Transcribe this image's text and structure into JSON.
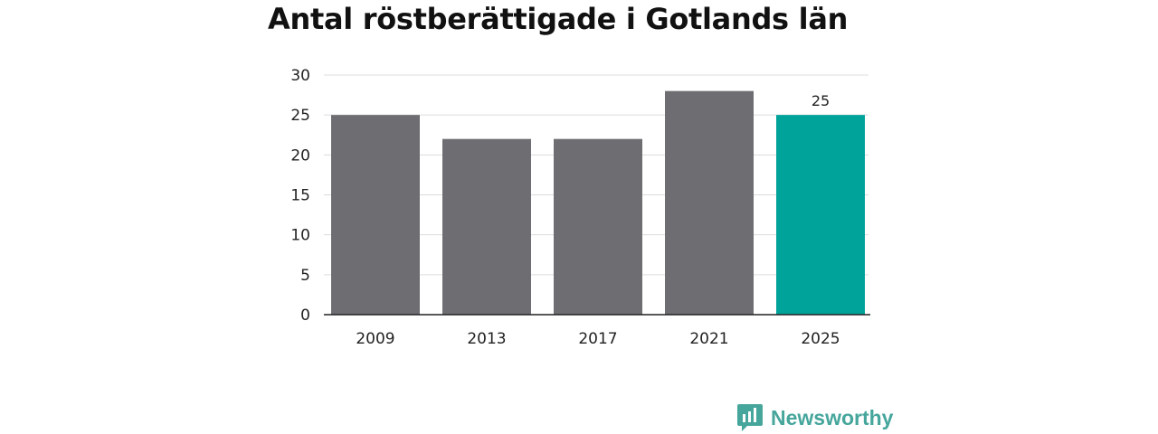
{
  "chart_data": {
    "type": "bar",
    "title": "Antal röstberättigade i Gotlands län",
    "categories": [
      "2009",
      "2013",
      "2017",
      "2021",
      "2025"
    ],
    "values": [
      25,
      22,
      22,
      28,
      25
    ],
    "ylim": [
      0,
      30
    ],
    "yticks": [
      0,
      5,
      10,
      15,
      20,
      25,
      30
    ],
    "ytick_labels": [
      "0",
      "5",
      "10",
      "15",
      "20",
      "25",
      "30"
    ],
    "xlabel": "",
    "ylabel": "",
    "grid": true,
    "bar_color": "#6e6d72",
    "highlight_index": 4,
    "highlight_color": "#00a39a",
    "data_labels": [
      {
        "index": 4,
        "text": "25"
      }
    ]
  },
  "brand": {
    "name": "Newsworthy",
    "icon": "newsworthy-logo-icon",
    "color": "#46a69c"
  }
}
